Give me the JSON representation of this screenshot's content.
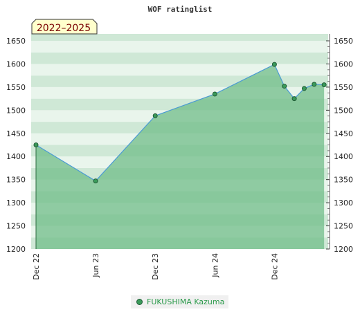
{
  "chart_data": {
    "type": "area",
    "title": "WOF ratinglist",
    "badge": "2022–2025",
    "x_labels": [
      "Dec 22",
      "Jun 23",
      "Dec 23",
      "Jun 24",
      "Dec 24"
    ],
    "y_ticks": [
      1200,
      1250,
      1300,
      1350,
      1400,
      1450,
      1500,
      1550,
      1600,
      1650
    ],
    "ylim": [
      1200,
      1665
    ],
    "series": [
      {
        "name": "FUKUSHIMA Kazuma",
        "points": [
          {
            "x": "2022-12",
            "y": 1425
          },
          {
            "x": "2023-06",
            "y": 1347
          },
          {
            "x": "2023-12",
            "y": 1488
          },
          {
            "x": "2024-06",
            "y": 1535
          },
          {
            "x": "2024-12",
            "y": 1599
          },
          {
            "x": "2025-01",
            "y": 1552
          },
          {
            "x": "2025-02",
            "y": 1525
          },
          {
            "x": "2025-03",
            "y": 1547
          },
          {
            "x": "2025-04",
            "y": 1556
          },
          {
            "x": "2025-05",
            "y": 1555
          }
        ]
      }
    ],
    "colors": {
      "line": "#4a9ad4",
      "fill": "#6cbb85",
      "marker": "#3a9a5a",
      "marker_stroke": "#1e5a34",
      "band_dark": "#cfe8d6",
      "band_light": "#e9f5ec"
    },
    "grid": true,
    "legend_position": "bottom-center"
  }
}
